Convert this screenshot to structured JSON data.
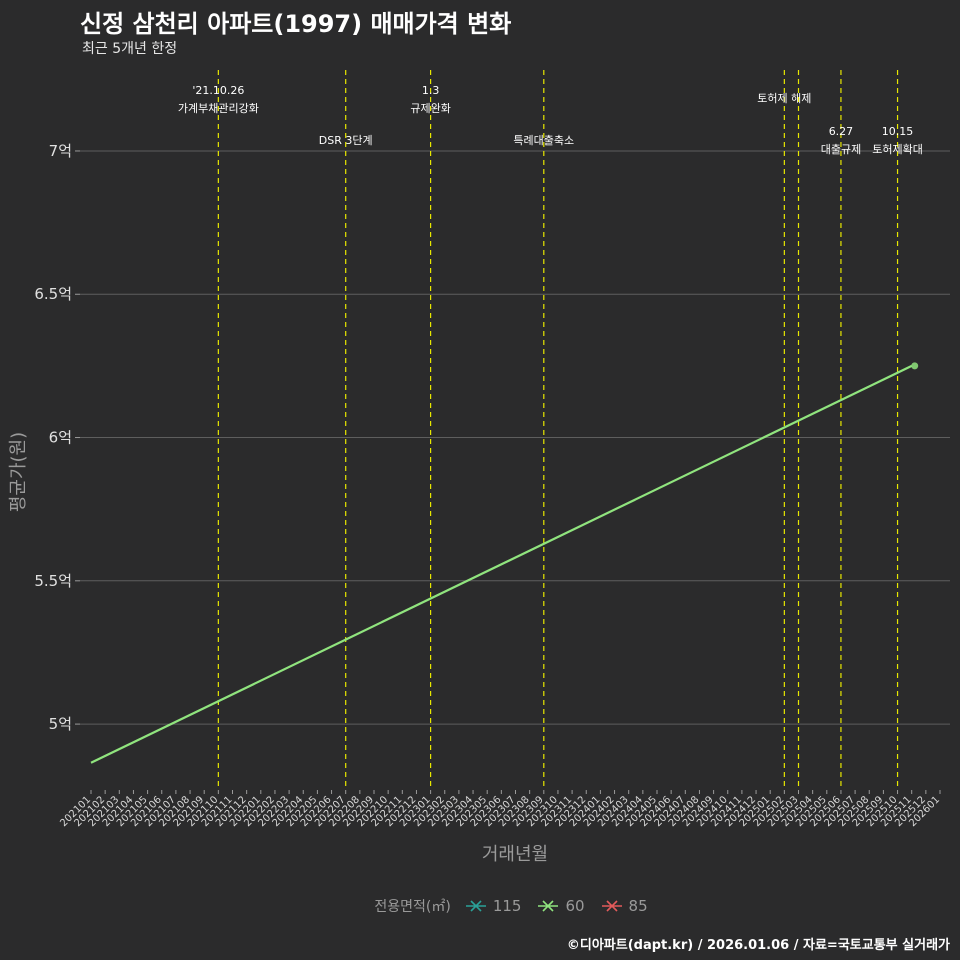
{
  "chart_data": {
    "type": "line",
    "title": "신정 삼천리 아파트(1997) 매매가격 변화",
    "subtitle": "최근 5개년 한정",
    "xlabel": "거래년월",
    "ylabel": "평균가(원)",
    "categories": [
      "202101",
      "202102",
      "202103",
      "202104",
      "202105",
      "202106",
      "202107",
      "202108",
      "202109",
      "202110",
      "202111",
      "202112",
      "202201",
      "202202",
      "202203",
      "202204",
      "202205",
      "202206",
      "202207",
      "202208",
      "202209",
      "202210",
      "202211",
      "202212",
      "202301",
      "202302",
      "202303",
      "202304",
      "202305",
      "202306",
      "202307",
      "202308",
      "202309",
      "202310",
      "202311",
      "202312",
      "202401",
      "202402",
      "202403",
      "202404",
      "202405",
      "202406",
      "202407",
      "202408",
      "202409",
      "202410",
      "202411",
      "202412",
      "202501",
      "202502",
      "202503",
      "202504",
      "202505",
      "202506",
      "202507",
      "202508",
      "202509",
      "202510",
      "202511",
      "202512",
      "202601"
    ],
    "yticks": [
      5,
      5.5,
      6,
      6.5,
      7
    ],
    "ytick_labels": [
      "5억",
      "5.5억",
      "6억",
      "6.5억",
      "7억"
    ],
    "ylim": [
      4.77,
      7.3
    ],
    "series": [
      {
        "name": "60",
        "color": "#90e47e",
        "line_start": {
          "x": "202101",
          "y": 4.865
        },
        "points": [
          {
            "x": "202511",
            "y": 6.25
          }
        ]
      }
    ],
    "events": [
      {
        "x": "202110",
        "lines": [
          "'21.10.26",
          "가계부채관리강화"
        ],
        "level": 1
      },
      {
        "x": "202207",
        "lines": [
          "DSR 3단계"
        ],
        "level": 3
      },
      {
        "x": "202301",
        "lines": [
          "1.3",
          "규제완화"
        ],
        "level": 1
      },
      {
        "x": "202309",
        "lines": [
          "특례대출축소"
        ],
        "level": 3
      },
      {
        "x": "202502",
        "lines": [
          "토허제 해제"
        ],
        "level": 2
      },
      {
        "x": "202503",
        "lines": [],
        "level": 0
      },
      {
        "x": "202506",
        "lines": [
          "6.27",
          "대출규제"
        ],
        "level": 4
      },
      {
        "x": "202510",
        "lines": [
          "10.15",
          "토허제확대"
        ],
        "level": 4
      }
    ],
    "legend": {
      "title": "전용면적(㎡)",
      "items": [
        {
          "label": "115",
          "color": "#2aa198"
        },
        {
          "label": "60",
          "color": "#90e47e"
        },
        {
          "label": "85",
          "color": "#e35b5b"
        }
      ]
    }
  },
  "caption": "©디아파트(dapt.kr) / 2026.01.06 / 자료=국토교통부 실거래가"
}
